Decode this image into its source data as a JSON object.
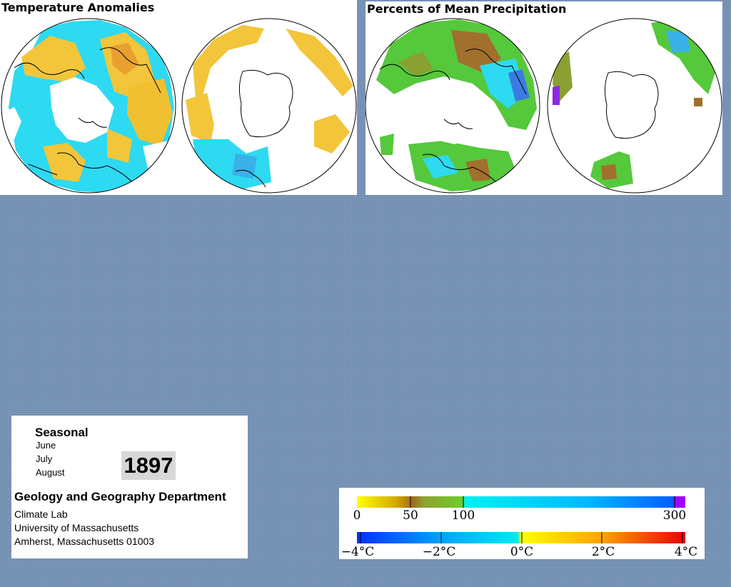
{
  "panels": {
    "temperature": {
      "title": "Temperature Anomalies"
    },
    "precipitation": {
      "title": "Percents of Mean Precipitation"
    }
  },
  "info": {
    "season_label": "Seasonal",
    "months": [
      "June",
      "July",
      "August"
    ],
    "year": "1897",
    "department": "Geology and Geography Department",
    "lab": "Climate Lab",
    "university": "University of Massachusetts",
    "address": "Amherst, Massachusetts 01003"
  },
  "legend": {
    "precipitation": {
      "ticks": [
        "0",
        "50",
        "100",
        "300"
      ],
      "colors": [
        "#ffff00",
        "#c8a000",
        "#a06a18",
        "#6ccc2c",
        "#00f0f0",
        "#0094ff",
        "#0050ff",
        "#a000ff"
      ]
    },
    "temperature": {
      "ticks": [
        "−4°C",
        "−2°C",
        "0°C",
        "2°C",
        "4°C"
      ],
      "colors": [
        "#0040ff",
        "#00a0ff",
        "#00e8f0",
        "#ffff00",
        "#ffb000",
        "#ff5000",
        "#e00000"
      ]
    }
  },
  "colors": {
    "background": "#7b97b8",
    "warm_anomaly": "#f2c53a",
    "cool_anomaly": "#2ed9f2",
    "dry": "#a0702c",
    "wet": "#55c83c"
  }
}
